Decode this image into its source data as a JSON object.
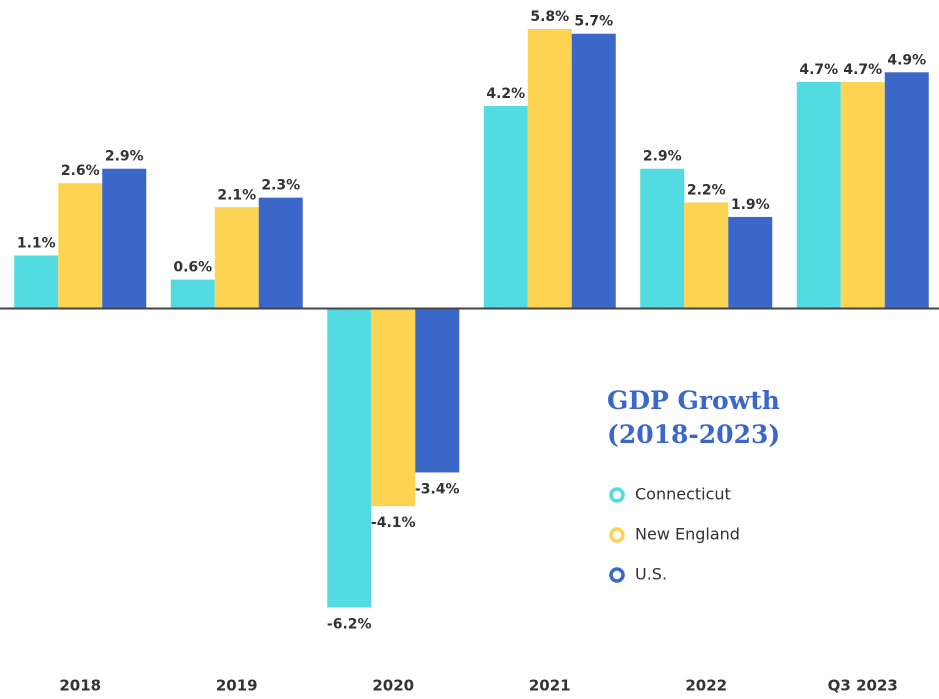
{
  "chart_data": {
    "type": "bar",
    "title": "GDP Growth (2018-2023)",
    "categories": [
      "2018",
      "2019",
      "2020",
      "2021",
      "2022",
      "Q3 2023"
    ],
    "series": [
      {
        "name": "Connecticut",
        "color": "#52dbe0",
        "values": [
          1.1,
          0.6,
          -6.2,
          4.2,
          2.9,
          4.7
        ],
        "value_labels": [
          "1.1%",
          "0.6%",
          "-6.2%",
          "4.2%",
          "2.9%",
          "4.7%"
        ]
      },
      {
        "name": "New England",
        "color": "#fdd451",
        "values": [
          2.6,
          2.1,
          -4.1,
          5.8,
          2.2,
          4.7
        ],
        "value_labels": [
          "2.6%",
          "2.1%",
          "-4.1%",
          "5.8%",
          "2.2%",
          "4.7%"
        ]
      },
      {
        "name": "U.S.",
        "color": "#3a67c8",
        "values": [
          2.9,
          2.3,
          -3.4,
          5.7,
          1.9,
          4.9
        ],
        "value_labels": [
          "2.9%",
          "2.3%",
          "-3.4%",
          "5.7%",
          "1.9%",
          "4.9%"
        ]
      }
    ],
    "ylim": [
      -8.1,
      6.4
    ],
    "legend": "right"
  }
}
